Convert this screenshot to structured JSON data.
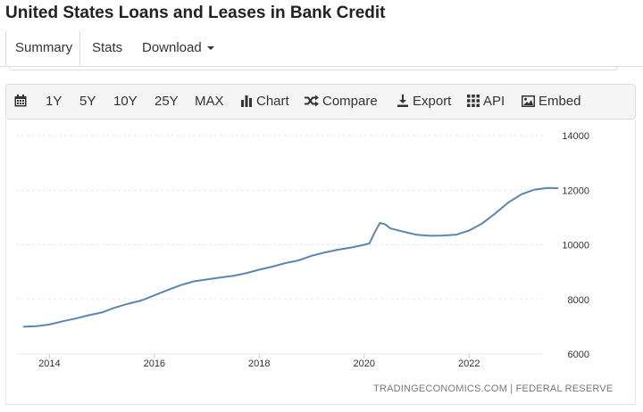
{
  "page": {
    "title": "United States Loans and Leases in Bank Credit"
  },
  "tabs": [
    {
      "label": "Summary",
      "active": true
    },
    {
      "label": "Stats"
    },
    {
      "label": "Download"
    }
  ],
  "toolbar": {
    "calendar_icon": "calendar-icon",
    "ranges": [
      "1Y",
      "5Y",
      "10Y",
      "25Y",
      "MAX"
    ],
    "chart_label": "Chart",
    "compare_label": "Compare",
    "export_label": "Export",
    "api_label": "API",
    "embed_label": "Embed"
  },
  "source": "TRADINGECONOMICS.COM | FEDERAL RESERVE",
  "colors": {
    "line": "#5b86b0",
    "grid": "#e8e8e8"
  },
  "chart_data": {
    "type": "line",
    "title": "",
    "xlabel": "",
    "ylabel": "",
    "ylim": [
      6000,
      14000
    ],
    "yticks": [
      6000,
      8000,
      10000,
      12000,
      14000
    ],
    "xticks": [
      2014,
      2016,
      2018,
      2020,
      2022
    ],
    "xlim": [
      2013.5,
      2023.75
    ],
    "grid": true,
    "series": [
      {
        "name": "",
        "points": [
          [
            2013.5,
            7000
          ],
          [
            2013.75,
            7020
          ],
          [
            2014.0,
            7080
          ],
          [
            2014.25,
            7200
          ],
          [
            2014.5,
            7300
          ],
          [
            2014.75,
            7420
          ],
          [
            2015.0,
            7520
          ],
          [
            2015.25,
            7700
          ],
          [
            2015.5,
            7840
          ],
          [
            2015.75,
            7960
          ],
          [
            2016.0,
            8150
          ],
          [
            2016.25,
            8340
          ],
          [
            2016.5,
            8520
          ],
          [
            2016.75,
            8660
          ],
          [
            2017.0,
            8730
          ],
          [
            2017.25,
            8800
          ],
          [
            2017.5,
            8860
          ],
          [
            2017.75,
            8960
          ],
          [
            2018.0,
            9090
          ],
          [
            2018.25,
            9200
          ],
          [
            2018.5,
            9330
          ],
          [
            2018.75,
            9430
          ],
          [
            2019.0,
            9600
          ],
          [
            2019.25,
            9720
          ],
          [
            2019.5,
            9820
          ],
          [
            2019.75,
            9900
          ],
          [
            2020.0,
            10000
          ],
          [
            2020.1,
            10050
          ],
          [
            2020.2,
            10450
          ],
          [
            2020.3,
            10800
          ],
          [
            2020.4,
            10750
          ],
          [
            2020.5,
            10600
          ],
          [
            2020.75,
            10480
          ],
          [
            2021.0,
            10370
          ],
          [
            2021.25,
            10330
          ],
          [
            2021.5,
            10340
          ],
          [
            2021.75,
            10370
          ],
          [
            2022.0,
            10520
          ],
          [
            2022.25,
            10780
          ],
          [
            2022.5,
            11150
          ],
          [
            2022.75,
            11550
          ],
          [
            2023.0,
            11850
          ],
          [
            2023.25,
            12020
          ],
          [
            2023.5,
            12080
          ],
          [
            2023.7,
            12070
          ]
        ]
      }
    ]
  }
}
